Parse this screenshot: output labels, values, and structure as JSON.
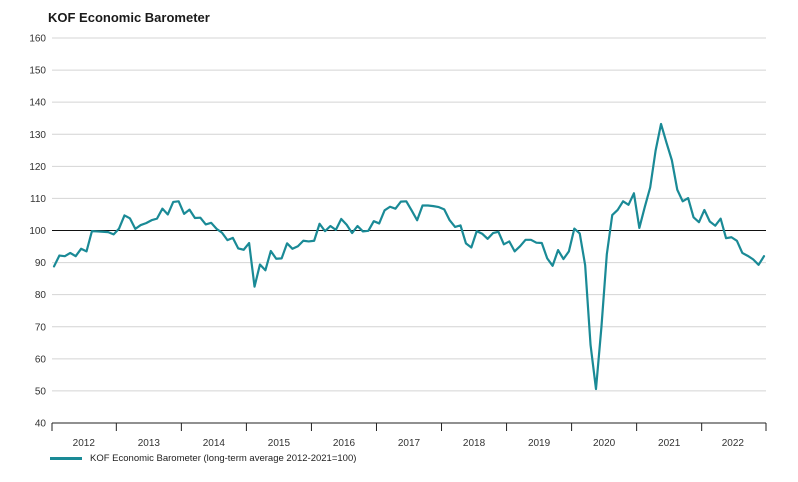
{
  "chart_data": {
    "type": "line",
    "title": "KOF Economic Barometer",
    "xlabel": "",
    "ylabel": "",
    "ylim": [
      40,
      160
    ],
    "yticks": [
      40,
      50,
      60,
      70,
      80,
      90,
      100,
      110,
      120,
      130,
      140,
      150,
      160
    ],
    "reference_line": 100,
    "x_start": "2012-01",
    "x_end": "2022-11",
    "x_tick_labels": [
      "2012",
      "2013",
      "2014",
      "2015",
      "2016",
      "2017",
      "2018",
      "2019",
      "2020",
      "2021",
      "2022"
    ],
    "legend_position": "bottom-left",
    "series": [
      {
        "name": "KOF Economic Barometer (long-term average 2012-2021=100)",
        "color": "#1a8a96",
        "values": [
          88.8,
          92.2,
          92.0,
          93.0,
          92.0,
          94.3,
          93.5,
          99.8,
          99.7,
          99.6,
          99.5,
          98.8,
          100.6,
          104.7,
          103.8,
          100.5,
          101.7,
          102.3,
          103.2,
          103.7,
          106.8,
          105.0,
          108.9,
          109.1,
          105.2,
          106.5,
          103.9,
          104.0,
          101.9,
          102.4,
          100.5,
          99.3,
          97.0,
          97.7,
          94.4,
          94.0,
          96.1,
          82.5,
          89.4,
          87.6,
          93.6,
          91.2,
          91.3,
          96.0,
          94.3,
          95.1,
          96.8,
          96.6,
          96.8,
          102.1,
          99.8,
          101.4,
          100.2,
          103.6,
          101.8,
          99.2,
          101.4,
          99.7,
          99.9,
          102.9,
          102.2,
          106.3,
          107.4,
          106.8,
          109.0,
          109.1,
          106.2,
          103.2,
          107.8,
          107.8,
          107.6,
          107.3,
          106.6,
          103.2,
          101.1,
          101.6,
          96.0,
          94.7,
          99.8,
          99.0,
          97.4,
          99.2,
          99.6,
          95.7,
          96.6,
          93.5,
          95.1,
          97.1,
          97.1,
          96.2,
          96.1,
          91.3,
          89.0,
          93.9,
          91.1,
          93.5,
          100.6,
          99.1,
          89.2,
          64.3,
          50.6,
          69.8,
          92.6,
          104.8,
          106.4,
          109.1,
          108.0,
          111.6,
          100.8,
          107.3,
          113.4,
          124.9,
          133.2,
          127.4,
          121.9,
          112.7,
          109.1,
          110.1,
          104.1,
          102.6,
          106.4,
          102.8,
          101.5,
          103.7,
          97.6,
          97.9,
          96.8,
          93.0,
          92.1,
          91.0,
          89.3,
          92.0
        ]
      }
    ]
  }
}
